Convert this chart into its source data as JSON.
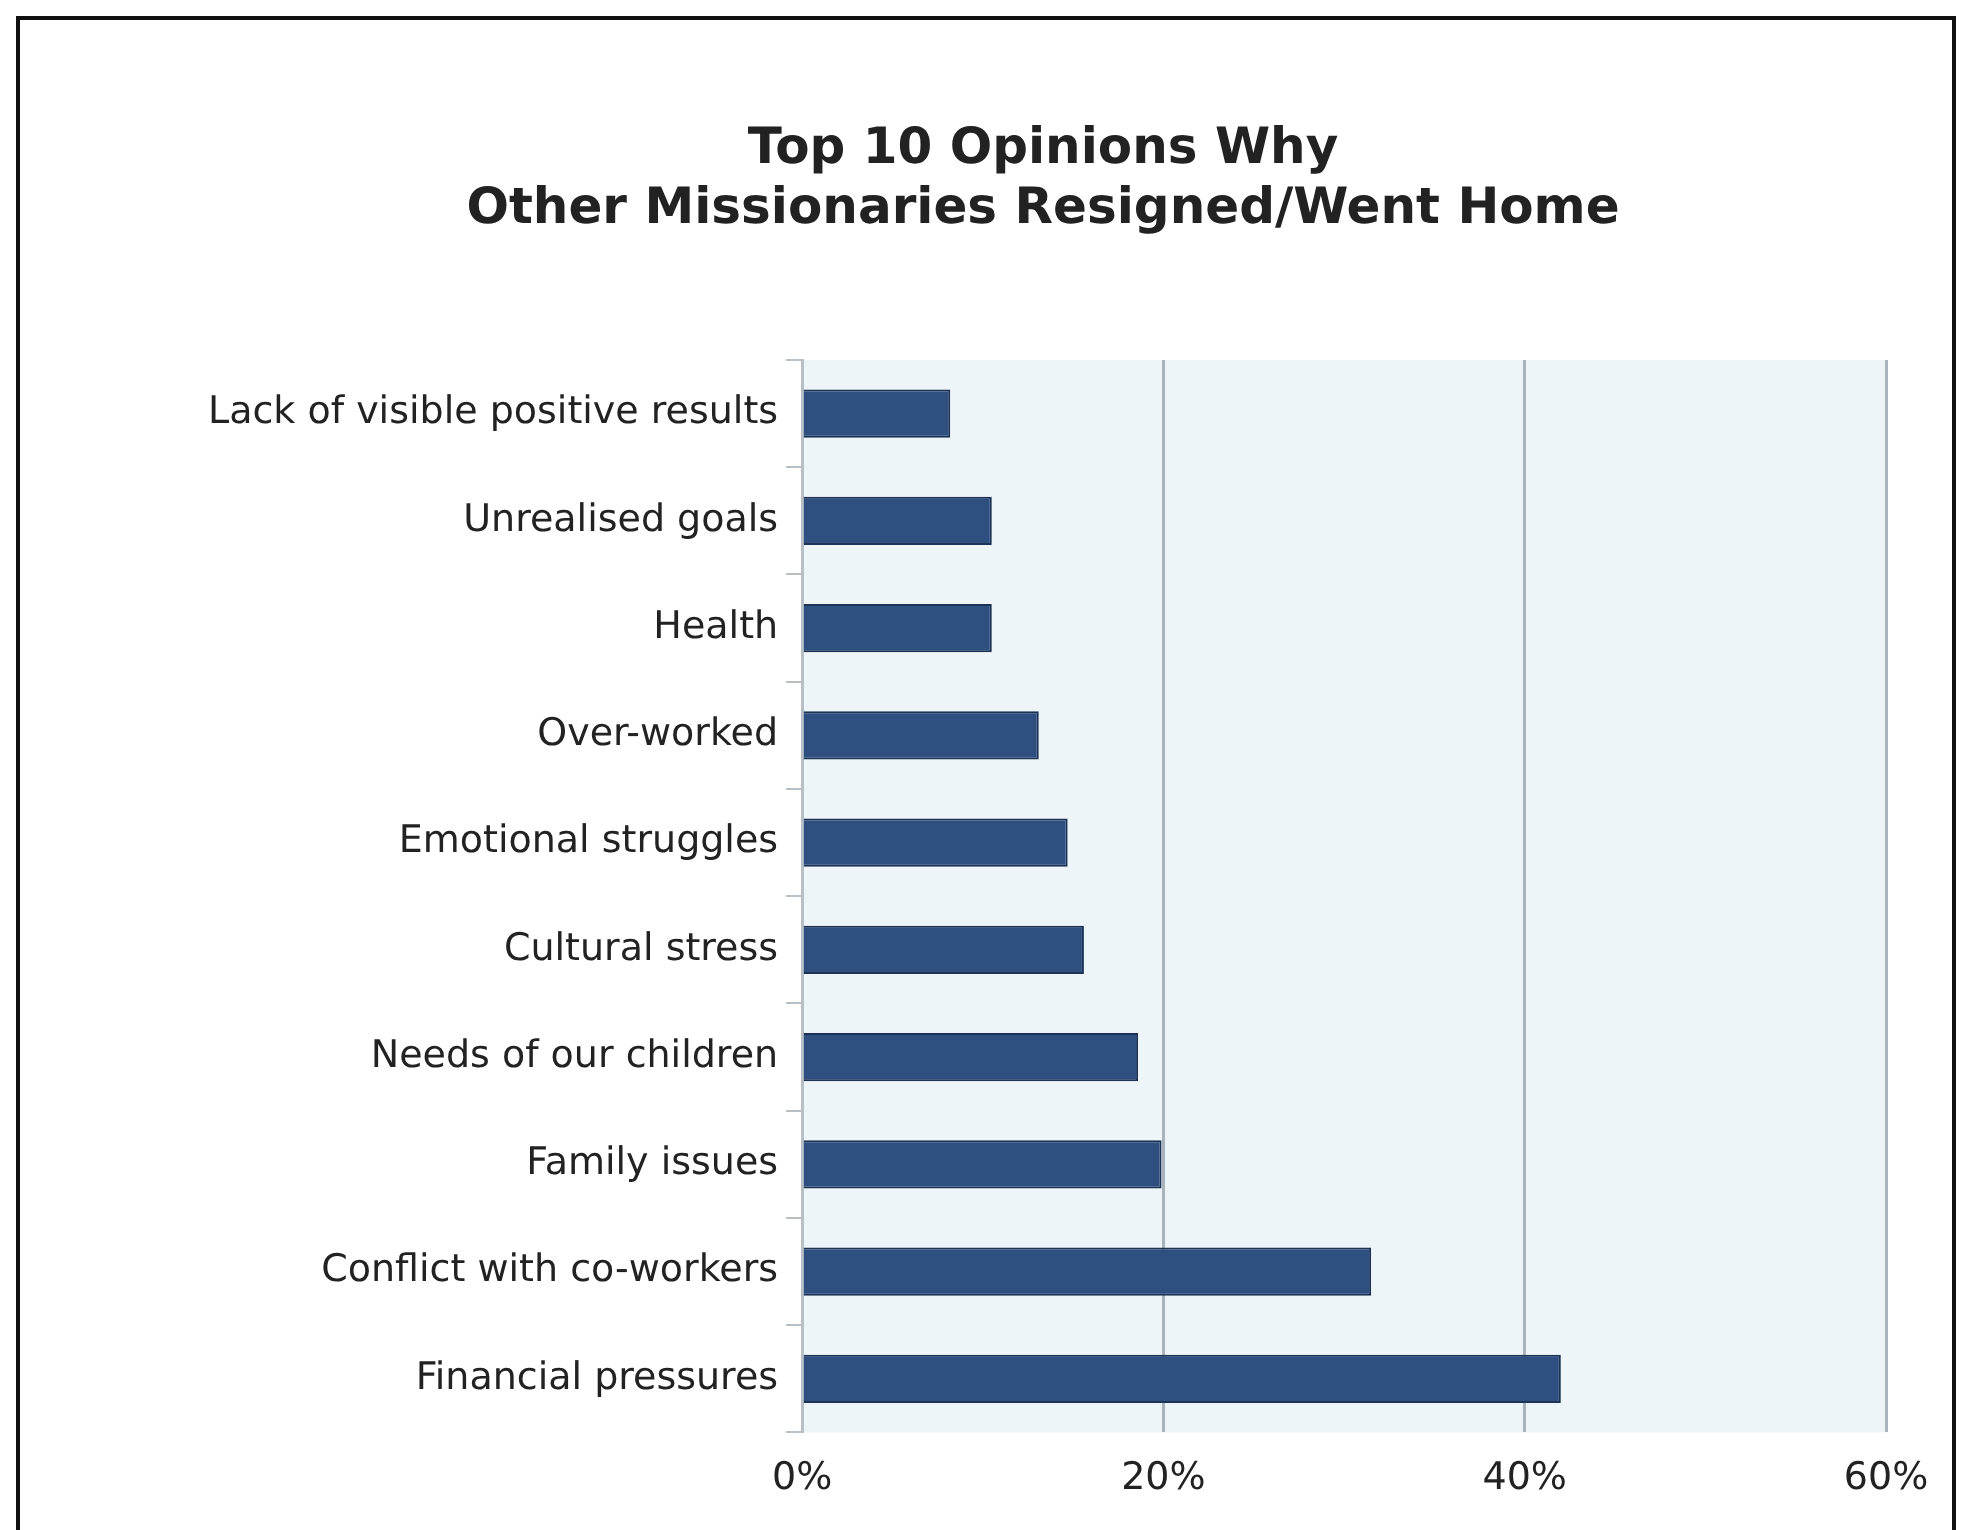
{
  "chart_data": {
    "type": "bar",
    "orientation": "horizontal",
    "title": "Top 10 Opinions Why\nOther Missionaries Resigned/Went Home",
    "categories": [
      "Lack of visible positive results",
      "Unrealised goals",
      "Health",
      "Over-worked",
      "Emotional struggles",
      "Cultural stress",
      "Needs of our children",
      "Family issues",
      "Conflict with co-workers",
      "Financial pressures"
    ],
    "values": [
      8.2,
      10.5,
      10.5,
      13.1,
      14.7,
      15.6,
      18.6,
      19.9,
      31.5,
      42
    ],
    "color": "#2f4f80",
    "xlim": [
      0,
      60
    ],
    "xticks": [
      {
        "value": 0,
        "label": "0%"
      },
      {
        "value": 20,
        "label": "20%"
      },
      {
        "value": 40,
        "label": "40%"
      },
      {
        "value": 60,
        "label": "60%"
      }
    ],
    "grid": "x",
    "legend": false
  }
}
